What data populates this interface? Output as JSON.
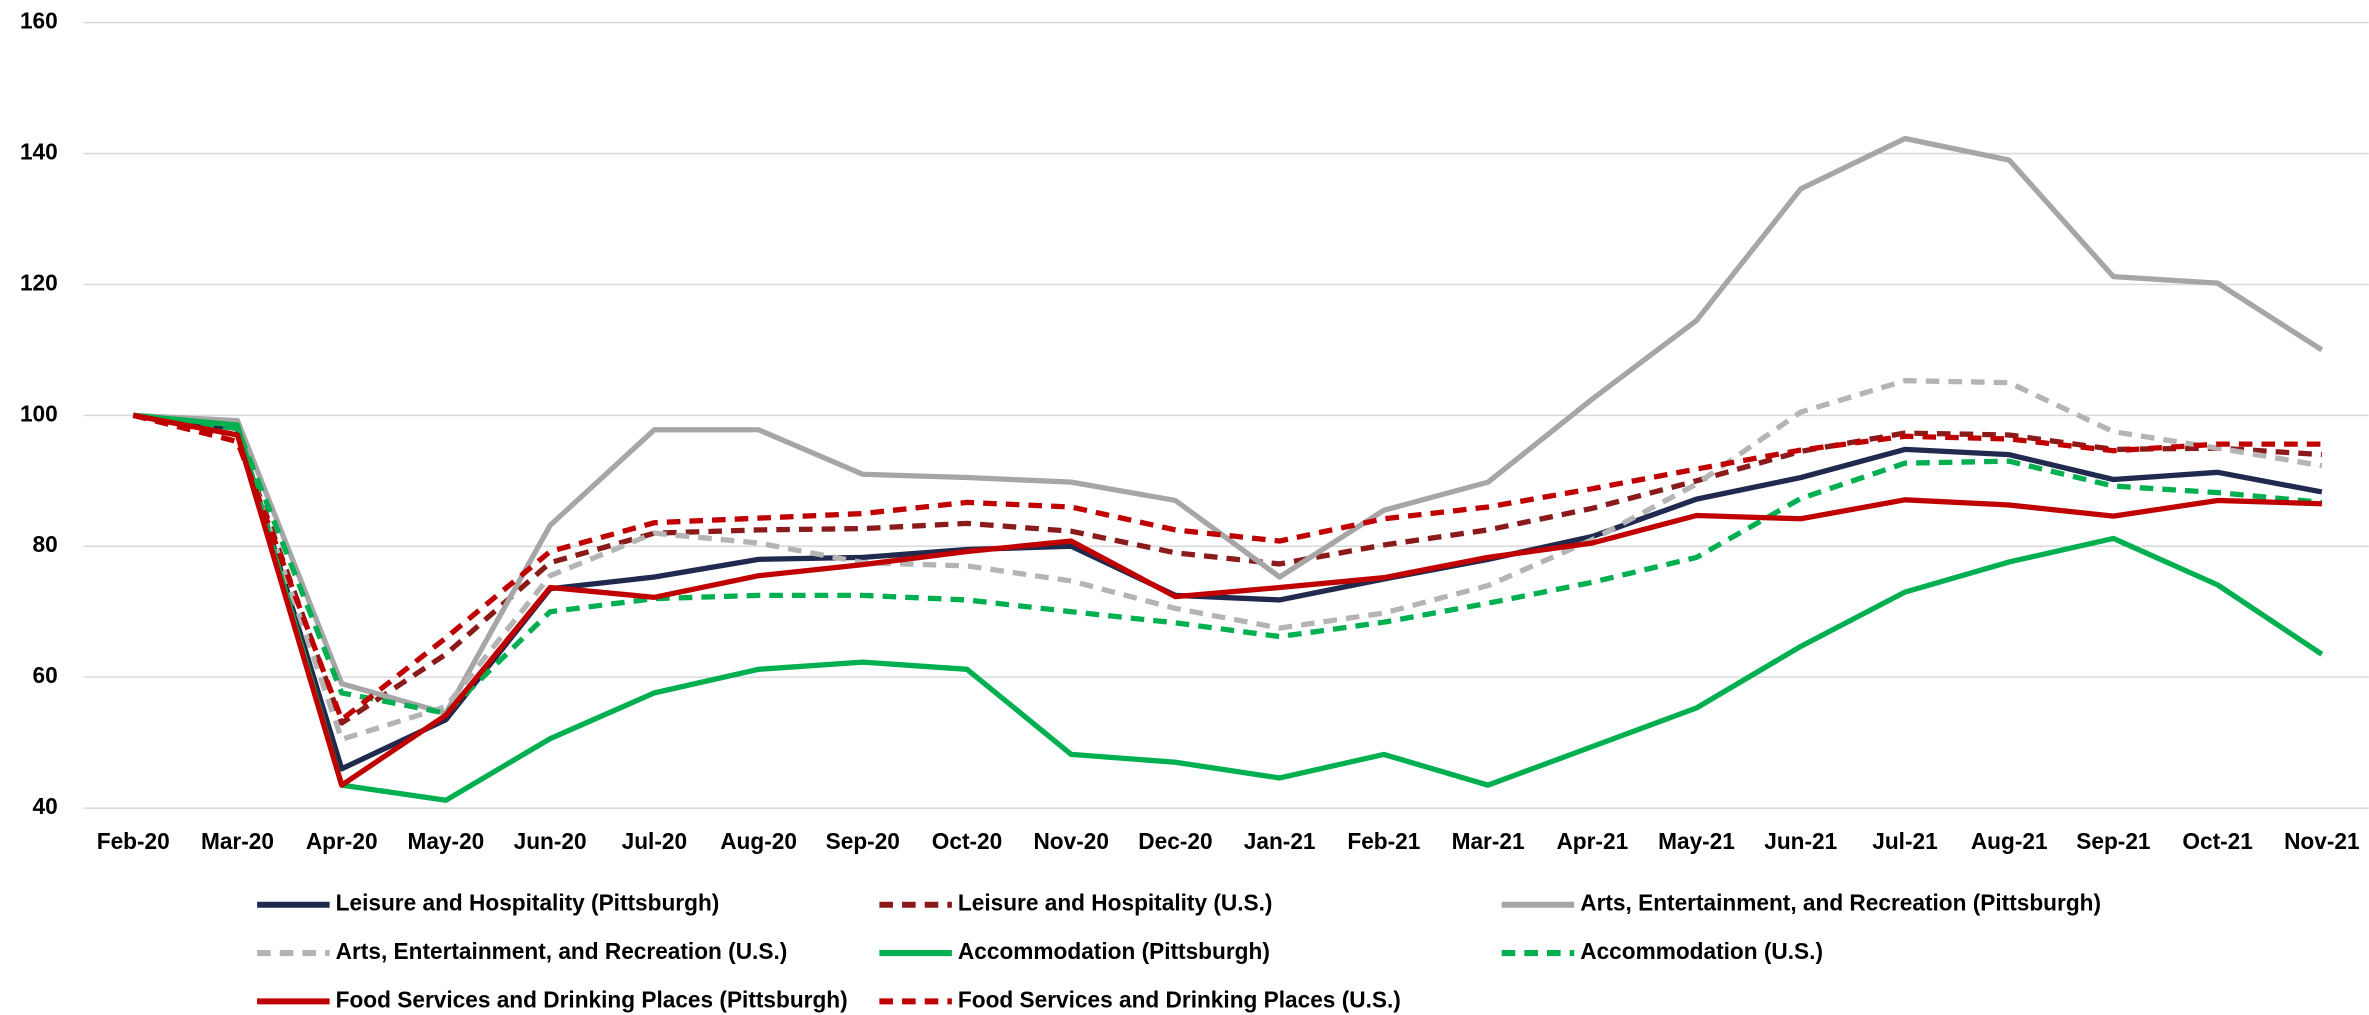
{
  "chart_data": {
    "type": "line",
    "categories": [
      "Feb-20",
      "Mar-20",
      "Apr-20",
      "May-20",
      "Jun-20",
      "Jul-20",
      "Aug-20",
      "Sep-20",
      "Oct-20",
      "Nov-20",
      "Dec-20",
      "Jan-21",
      "Feb-21",
      "Mar-21",
      "Apr-21",
      "May-21",
      "Jun-21",
      "Jul-21",
      "Aug-21",
      "Sep-21",
      "Oct-21",
      "Nov-21"
    ],
    "ylim": [
      40,
      160
    ],
    "yticks": [
      40,
      60,
      80,
      100,
      120,
      140,
      160
    ],
    "grid": true,
    "legend": "bottom",
    "series": [
      {
        "name": "Leisure and Hospitality (Pittsburgh)",
        "color": "#1f2a4e",
        "dashed": false,
        "values": [
          100,
          98,
          46,
          53.5,
          73.5,
          75.3,
          78,
          78.3,
          79.5,
          80,
          72.5,
          71.8,
          75,
          78,
          81.5,
          87.2,
          90.5,
          94.8,
          94,
          90.2,
          91.3,
          88.3
        ]
      },
      {
        "name": "Leisure and Hospitality (U.S.)",
        "color": "#8b1a1a",
        "dashed": true,
        "values": [
          100,
          97,
          53,
          63.5,
          77.5,
          82,
          82.5,
          82.7,
          83.5,
          82.3,
          79,
          77.3,
          80.2,
          82.5,
          85.8,
          90,
          94.5,
          97.3,
          97,
          94.8,
          95,
          94
        ]
      },
      {
        "name": "Arts, Entertainment, and Recreation (Pittsburgh)",
        "color": "#a6a6a6",
        "dashed": false,
        "values": [
          100,
          99.2,
          59,
          54.5,
          83.2,
          97.8,
          97.8,
          91,
          90.5,
          89.8,
          87,
          75.3,
          85.5,
          89.8,
          102.5,
          114.5,
          134.6,
          142.3,
          139,
          121.2,
          120.2,
          110
        ]
      },
      {
        "name": "Arts, Entertainment, and Recreation (U.S.)",
        "color": "#b4b4b4",
        "dashed": true,
        "values": [
          100,
          97,
          50.5,
          55.5,
          75.5,
          82,
          80.5,
          77.5,
          77,
          74.7,
          70.5,
          67.5,
          69.8,
          74,
          81,
          89.5,
          100.5,
          105.3,
          105,
          97.5,
          95,
          92.3
        ]
      },
      {
        "name": "Accommodation (Pittsburgh)",
        "color": "#00b050",
        "dashed": false,
        "values": [
          100,
          98.5,
          43.5,
          41.2,
          50.6,
          57.6,
          61.2,
          62.3,
          61.2,
          48.2,
          47,
          44.6,
          48.2,
          43.5,
          49.4,
          55.3,
          64.7,
          73,
          77.6,
          81.2,
          74.1,
          63.5
        ]
      },
      {
        "name": "Accommodation (U.S.)",
        "color": "#00b050",
        "dashed": true,
        "values": [
          100,
          98,
          57.6,
          54.5,
          70,
          72,
          72.5,
          72.5,
          71.8,
          70,
          68.3,
          66.2,
          68.4,
          71.3,
          74.5,
          78.3,
          87.3,
          92.7,
          93,
          89.2,
          88.2,
          86.7
        ]
      },
      {
        "name": "Food Services and Drinking Places (Pittsburgh)",
        "color": "#c00000",
        "dashed": false,
        "values": [
          100,
          97,
          43.5,
          54.2,
          73.7,
          72.2,
          75.5,
          77.2,
          79.2,
          80.8,
          72.3,
          73.7,
          75.2,
          78.3,
          80.5,
          84.7,
          84.2,
          87.1,
          86.3,
          84.6,
          87,
          86.5
        ]
      },
      {
        "name": "Food Services and Drinking Places (U.S.)",
        "color": "#c00000",
        "dashed": true,
        "values": [
          100,
          96,
          53.5,
          66,
          79.2,
          83.6,
          84.3,
          85,
          86.7,
          86,
          82.5,
          80.8,
          84.2,
          86,
          88.8,
          91.8,
          94.7,
          96.8,
          96.4,
          94.6,
          95.6,
          95.6
        ]
      }
    ]
  }
}
